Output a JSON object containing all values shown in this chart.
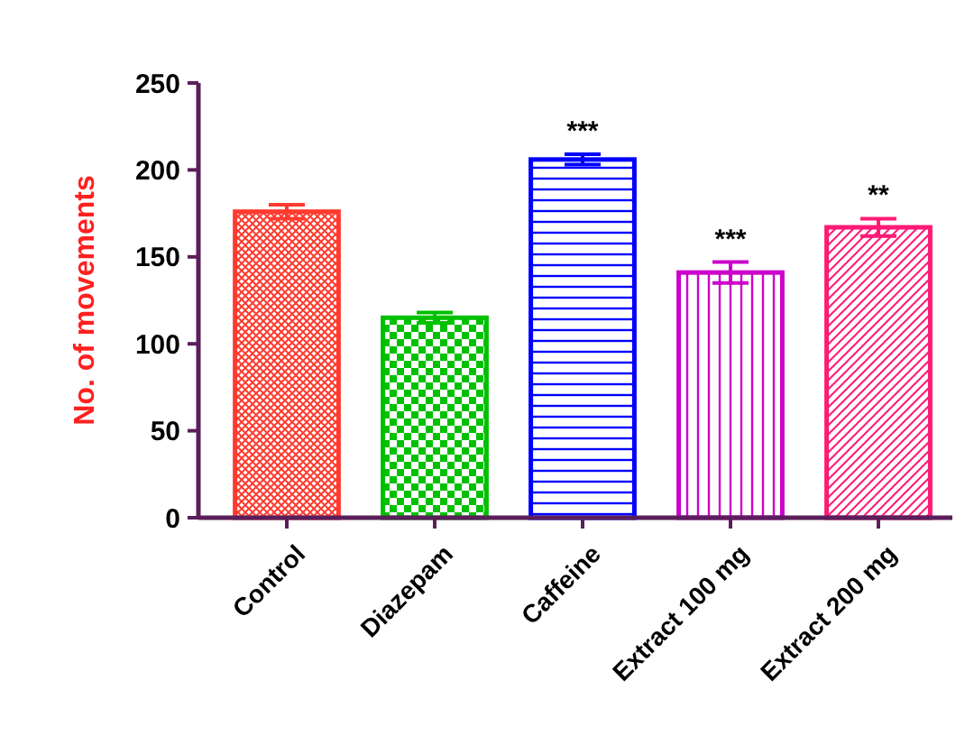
{
  "chart_data": {
    "type": "bar",
    "ylabel": "No. of movements",
    "categories": [
      "Control",
      "Diazepam",
      "Caffeine",
      "Extract 100 mg",
      "Extract 200 mg"
    ],
    "values": [
      176,
      115,
      206,
      141,
      167
    ],
    "errors": [
      4,
      3,
      3,
      6,
      5
    ],
    "colors": [
      "#ff3b2f",
      "#00c000",
      "#0000ff",
      "#cc00cc",
      "#ff1a75"
    ],
    "ylim": [
      0,
      250
    ],
    "yticks": [
      0,
      50,
      100,
      150,
      200,
      250
    ],
    "grid": false,
    "annotations": [
      {
        "text": "***",
        "x": "Caffeine",
        "y": 209
      },
      {
        "text": "***",
        "x": "Extract 100 mg",
        "y": 147
      },
      {
        "text": "**",
        "x": "Extract 200 mg",
        "y": 172
      }
    ]
  }
}
